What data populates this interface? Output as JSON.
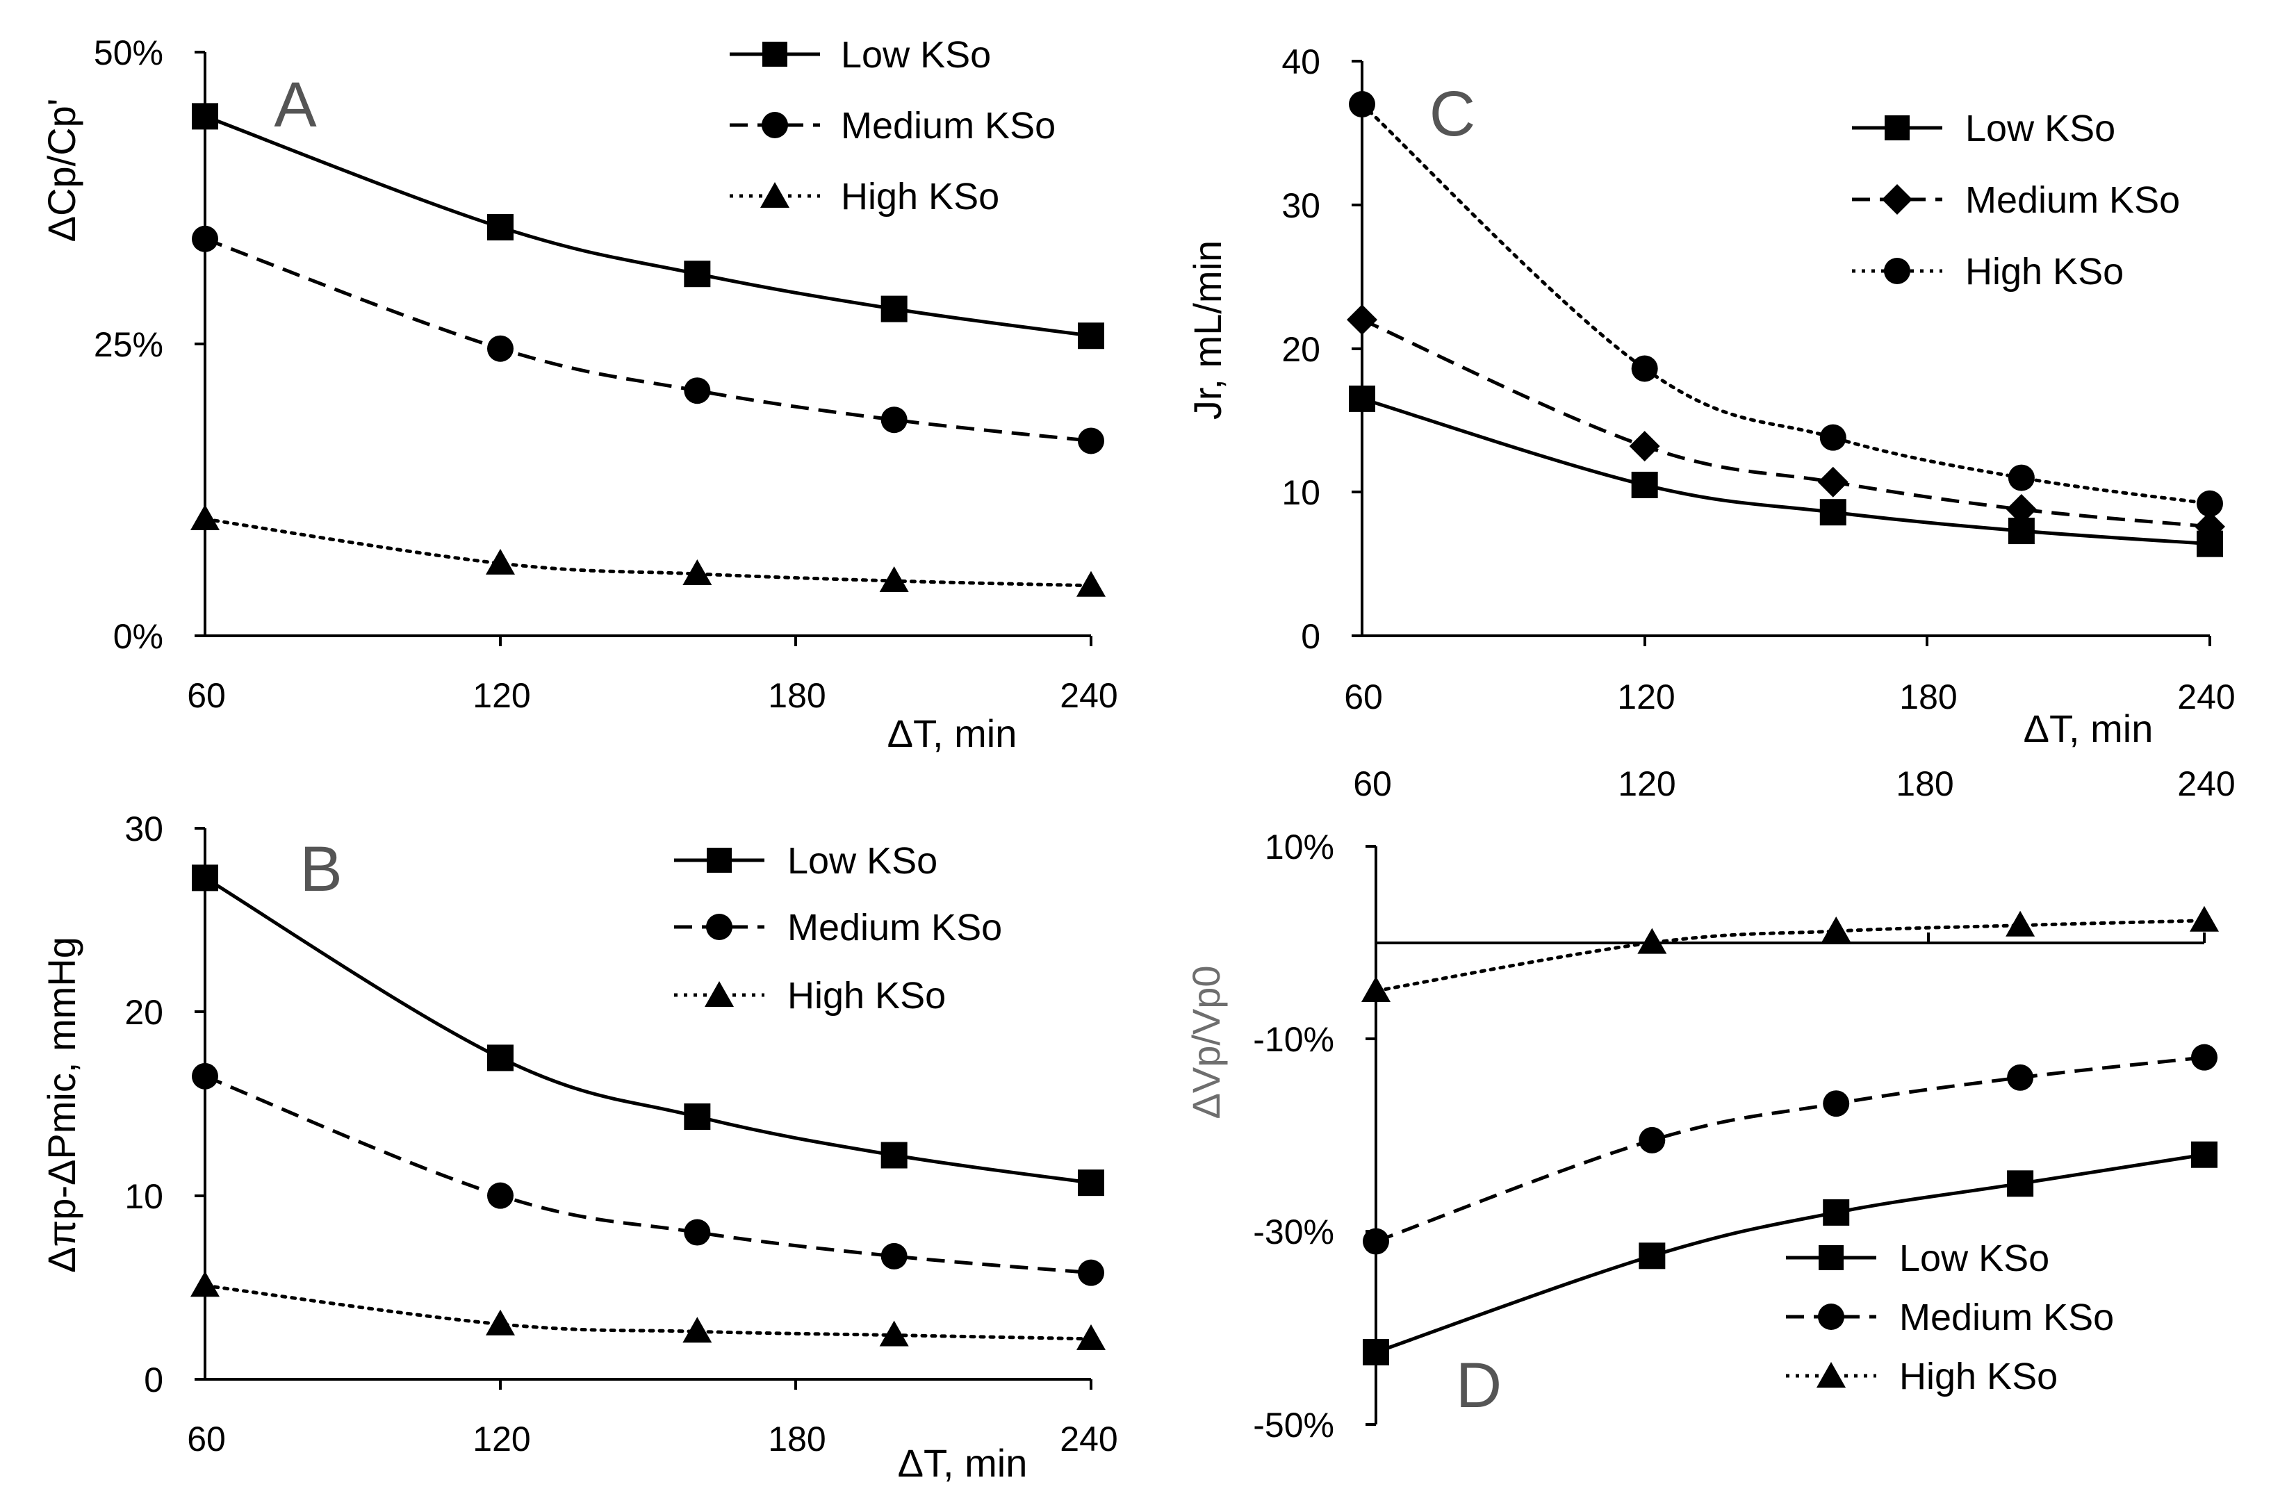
{
  "figure": {
    "panels": {
      "A": {
        "letter": "A",
        "xlabel": "ΔT, min",
        "ylabel": "ΔCp/Cp'",
        "xlim": [
          60,
          240
        ],
        "ylim": [
          0,
          50
        ],
        "x_ticks": [
          "60",
          "120",
          "180",
          "240"
        ],
        "y_ticks": [
          "0%",
          "25%",
          "50%"
        ],
        "legend": [
          "Low KSo",
          "Medium KSo",
          "High KSo"
        ]
      },
      "B": {
        "letter": "B",
        "xlabel": "ΔT, min",
        "ylabel": "Δπp-ΔPmic, mmHg",
        "xlim": [
          60,
          240
        ],
        "ylim": [
          0,
          30
        ],
        "x_ticks": [
          "60",
          "120",
          "180",
          "240"
        ],
        "y_ticks": [
          "0",
          "10",
          "20",
          "30"
        ],
        "legend": [
          "Low KSo",
          "Medium KSo",
          "High KSo"
        ]
      },
      "C": {
        "letter": "C",
        "xlabel": "ΔT, min",
        "ylabel": "Jr, mL/min",
        "xlim": [
          60,
          240
        ],
        "ylim": [
          0,
          40
        ],
        "x_ticks": [
          "60",
          "120",
          "180",
          "240"
        ],
        "y_ticks": [
          "0",
          "10",
          "20",
          "30",
          "40"
        ],
        "legend": [
          "Low KSo",
          "Medium KSo",
          "High KSo"
        ]
      },
      "D": {
        "letter": "D",
        "ylabel": "ΔVp/Vp0",
        "xlim": [
          60,
          240
        ],
        "ylim": [
          -50,
          10
        ],
        "x_ticks": [
          "60",
          "120",
          "180",
          "240"
        ],
        "y_ticks": [
          "-50%",
          "-30%",
          "-10%",
          "10%"
        ],
        "legend": [
          "Low KSo",
          "Medium KSo",
          "High KSo"
        ]
      }
    }
  },
  "chart_data": [
    {
      "id": "A",
      "type": "line",
      "title": "",
      "xlabel": "ΔT, min",
      "ylabel": "ΔCp/Cp'",
      "xlim": [
        60,
        240
      ],
      "ylim": [
        0,
        50
      ],
      "y_unit": "%",
      "series": [
        {
          "name": "Low KSo",
          "marker": "square",
          "dash": "solid",
          "x": [
            60,
            120,
            160,
            200,
            240
          ],
          "y": [
            44.5,
            35,
            31,
            28,
            25.7
          ]
        },
        {
          "name": "Medium KSo",
          "marker": "circle",
          "dash": "dashed",
          "x": [
            60,
            120,
            160,
            200,
            240
          ],
          "y": [
            34,
            24.6,
            21,
            18.5,
            16.7
          ]
        },
        {
          "name": "High KSo",
          "marker": "triangle",
          "dash": "dotted",
          "x": [
            60,
            120,
            160,
            200,
            240
          ],
          "y": [
            10,
            6.2,
            5.3,
            4.7,
            4.3
          ]
        }
      ]
    },
    {
      "id": "B",
      "type": "line",
      "title": "",
      "xlabel": "ΔT, min",
      "ylabel": "Δπp-ΔPmic, mmHg",
      "xlim": [
        60,
        240
      ],
      "ylim": [
        0,
        30
      ],
      "series": [
        {
          "name": "Low KSo",
          "marker": "square",
          "dash": "solid",
          "x": [
            60,
            120,
            160,
            200,
            240
          ],
          "y": [
            27.3,
            17.5,
            14.3,
            12.2,
            10.7
          ]
        },
        {
          "name": "Medium KSo",
          "marker": "circle",
          "dash": "dashed",
          "x": [
            60,
            120,
            160,
            200,
            240
          ],
          "y": [
            16.5,
            10,
            8,
            6.7,
            5.8
          ]
        },
        {
          "name": "High KSo",
          "marker": "triangle",
          "dash": "dotted",
          "x": [
            60,
            120,
            160,
            200,
            240
          ],
          "y": [
            5.1,
            3,
            2.6,
            2.4,
            2.2
          ]
        }
      ]
    },
    {
      "id": "C",
      "type": "line",
      "title": "",
      "xlabel": "ΔT, min",
      "ylabel": "Jr, mL/min",
      "xlim": [
        60,
        240
      ],
      "ylim": [
        0,
        40
      ],
      "series": [
        {
          "name": "Low KSo",
          "marker": "square",
          "dash": "solid",
          "x": [
            60,
            120,
            160,
            200,
            240
          ],
          "y": [
            16.5,
            10.5,
            8.6,
            7.3,
            6.4
          ]
        },
        {
          "name": "Medium KSo",
          "marker": "diamond",
          "dash": "dashed",
          "x": [
            60,
            120,
            160,
            200,
            240
          ],
          "y": [
            22,
            13.2,
            10.7,
            8.8,
            7.6
          ]
        },
        {
          "name": "High KSo",
          "marker": "circle",
          "dash": "dotted",
          "x": [
            60,
            120,
            160,
            200,
            240
          ],
          "y": [
            37,
            18.6,
            13.8,
            11,
            9.2
          ]
        }
      ]
    },
    {
      "id": "D",
      "type": "line",
      "title": "",
      "xlabel": "",
      "ylabel": "ΔVp/Vp0",
      "xlim": [
        60,
        240
      ],
      "ylim": [
        -50,
        10
      ],
      "y_unit": "%",
      "x_axis_position": "top",
      "series": [
        {
          "name": "Low KSo",
          "marker": "square",
          "dash": "solid",
          "x": [
            60,
            120,
            160,
            200,
            240
          ],
          "y": [
            -42.5,
            -32.5,
            -28,
            -25,
            -22
          ]
        },
        {
          "name": "Medium KSo",
          "marker": "circle",
          "dash": "dashed",
          "x": [
            60,
            120,
            160,
            200,
            240
          ],
          "y": [
            -31,
            -20.5,
            -16.7,
            -14,
            -11.9
          ]
        },
        {
          "name": "High KSo",
          "marker": "triangle",
          "dash": "dotted",
          "x": [
            60,
            120,
            160,
            200,
            240
          ],
          "y": [
            -5,
            0,
            1.2,
            1.8,
            2.3
          ]
        }
      ]
    }
  ]
}
